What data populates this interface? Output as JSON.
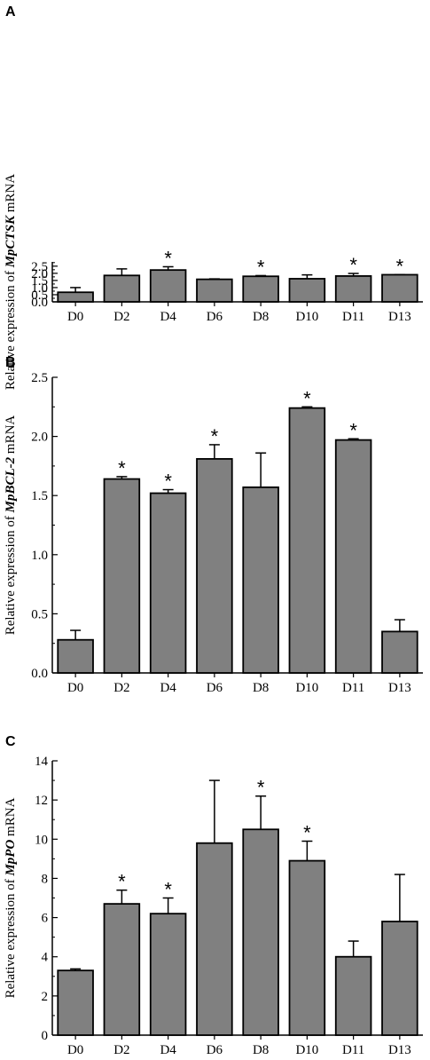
{
  "chart_data": [
    {
      "type": "bar",
      "panel": "A",
      "ylabel_prefix": "Relative expression of ",
      "ylabel_gene": "MpCTSK",
      "ylabel_suffix": " mRNA",
      "ylim": [
        0,
        2.8
      ],
      "yticks": [
        "0.0",
        "0.5",
        "1.0",
        "1.5",
        "2.0",
        "2.5"
      ],
      "ytick_values": [
        0,
        0.5,
        1.0,
        1.5,
        2.0,
        2.5
      ],
      "categories": [
        "D0",
        "D2",
        "D4",
        "D6",
        "D8",
        "D10",
        "D11",
        "D13"
      ],
      "values": [
        0.67,
        1.85,
        2.23,
        1.58,
        1.79,
        1.62,
        1.81,
        1.9
      ],
      "errors": [
        0.33,
        0.46,
        0.23,
        0.03,
        0.05,
        0.27,
        0.18,
        0.01
      ],
      "significance": [
        "",
        "",
        "*",
        "",
        "*",
        "",
        "*",
        "*"
      ],
      "bar_color": "#808080"
    },
    {
      "type": "bar",
      "panel": "B",
      "ylabel_prefix": "Relative expression of ",
      "ylabel_gene": "MpBCL-2",
      "ylabel_suffix": " mRNA",
      "ylim": [
        0,
        2.5
      ],
      "yticks": [
        "0.0",
        "0.5",
        "1.0",
        "1.5",
        "2.0",
        "2.5"
      ],
      "ytick_values": [
        0,
        0.5,
        1.0,
        1.5,
        2.0,
        2.5
      ],
      "categories": [
        "D0",
        "D2",
        "D4",
        "D6",
        "D8",
        "D10",
        "D11",
        "D13"
      ],
      "values": [
        0.28,
        1.64,
        1.52,
        1.81,
        1.57,
        2.24,
        1.97,
        0.35
      ],
      "errors": [
        0.08,
        0.02,
        0.03,
        0.12,
        0.29,
        0.01,
        0.01,
        0.1
      ],
      "significance": [
        "",
        "*",
        "*",
        "*",
        "",
        "*",
        "*",
        ""
      ],
      "bar_color": "#808080"
    },
    {
      "type": "bar",
      "panel": "C",
      "ylabel_prefix": "Relative expression of ",
      "ylabel_gene": "MpPO",
      "ylabel_suffix": " mRNA",
      "ylim": [
        0,
        14
      ],
      "yticks": [
        "0",
        "2",
        "4",
        "6",
        "8",
        "10",
        "12",
        "14"
      ],
      "ytick_values": [
        0,
        2,
        4,
        6,
        8,
        10,
        12,
        14
      ],
      "categories": [
        "D0",
        "D2",
        "D4",
        "D6",
        "D8",
        "D10",
        "D11",
        "D13"
      ],
      "values": [
        3.3,
        6.7,
        6.2,
        9.8,
        10.5,
        8.9,
        4.0,
        5.8
      ],
      "errors": [
        0.08,
        0.7,
        0.8,
        3.2,
        1.7,
        1.0,
        0.8,
        2.4
      ],
      "significance": [
        "",
        "*",
        "*",
        "",
        "*",
        "*",
        "",
        ""
      ],
      "bar_color": "#808080"
    }
  ]
}
